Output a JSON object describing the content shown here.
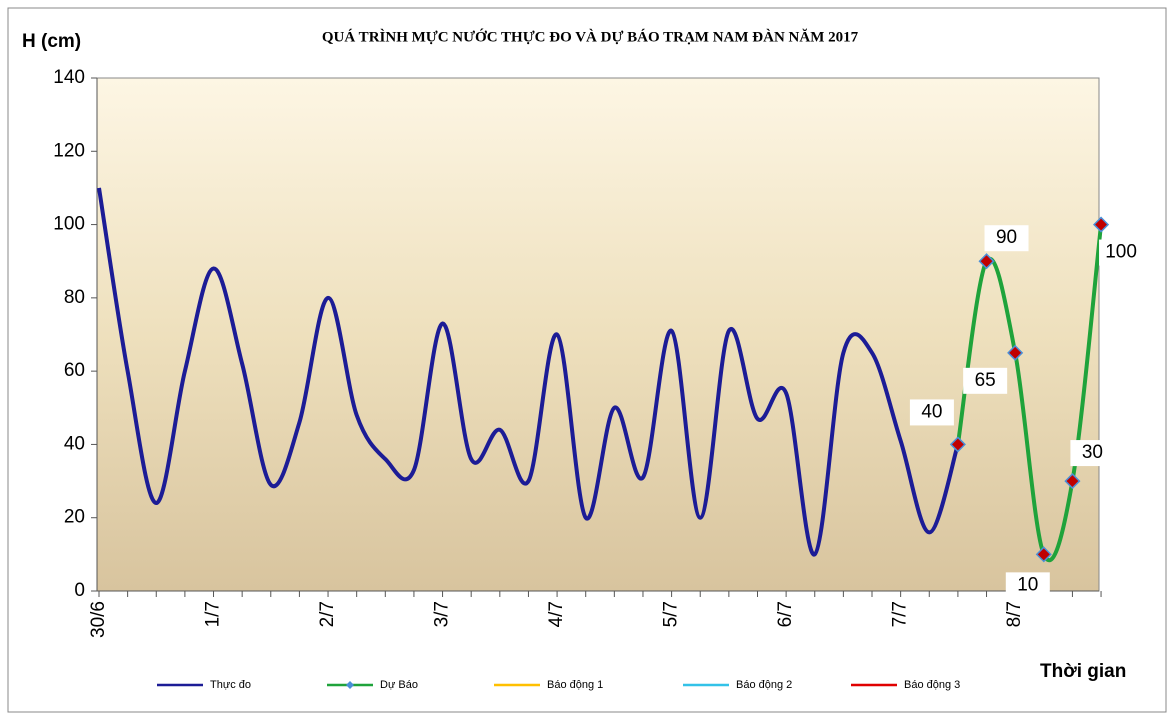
{
  "chart_data": {
    "type": "line",
    "title": "QUÁ TRÌNH MỰC NƯỚC THỰC ĐO VÀ DỰ BÁO TRẠM  NAM ĐÀN  NĂM 2017",
    "y_label": "H (cm)",
    "x_label": "Thời gian",
    "categories": [
      "30/6",
      null,
      null,
      null,
      "1/7",
      null,
      null,
      null,
      "2/7",
      null,
      null,
      null,
      "3/7",
      null,
      null,
      null,
      "4/7",
      null,
      null,
      null,
      "5/7",
      null,
      null,
      null,
      "6/7",
      null,
      null,
      null,
      "7/7",
      null,
      null,
      null,
      "8/7",
      null,
      null,
      null
    ],
    "ylim": [
      0,
      140
    ],
    "yticks": [
      0,
      20,
      40,
      60,
      80,
      100,
      120,
      140
    ],
    "grid": false,
    "legend": "bottom",
    "series": [
      {
        "name": "Thực đo",
        "color": "#1c1c96",
        "values": [
          110,
          60,
          24,
          60,
          88,
          62,
          29,
          46,
          80,
          48,
          36,
          33,
          73,
          36,
          44,
          30,
          70,
          20,
          50,
          31,
          71,
          20,
          71,
          47,
          54,
          10,
          65,
          65,
          41,
          16,
          40,
          null,
          null,
          null,
          null,
          null
        ]
      },
      {
        "name": "Dự Báo",
        "color": "#1fa33b",
        "marker_color": "#c00000",
        "data_labels": true,
        "values": [
          null,
          null,
          null,
          null,
          null,
          null,
          null,
          null,
          null,
          null,
          null,
          null,
          null,
          null,
          null,
          null,
          null,
          null,
          null,
          null,
          null,
          null,
          null,
          null,
          null,
          null,
          null,
          null,
          null,
          null,
          40,
          90,
          65,
          10,
          30,
          100
        ]
      },
      {
        "name": "Báo động 1",
        "color": "#ffc000",
        "values": [
          null,
          null,
          null,
          null,
          null,
          null,
          null,
          null,
          null,
          null,
          null,
          null,
          null,
          null,
          null,
          null,
          null,
          null,
          null,
          null,
          null,
          null,
          null,
          null,
          null,
          null,
          null,
          null,
          null,
          null,
          null,
          null,
          null,
          null,
          null,
          null
        ]
      },
      {
        "name": "Báo động 2",
        "color": "#33c2e8",
        "values": [
          null,
          null,
          null,
          null,
          null,
          null,
          null,
          null,
          null,
          null,
          null,
          null,
          null,
          null,
          null,
          null,
          null,
          null,
          null,
          null,
          null,
          null,
          null,
          null,
          null,
          null,
          null,
          null,
          null,
          null,
          null,
          null,
          null,
          null,
          null,
          null
        ]
      },
      {
        "name": "Báo động 3",
        "color": "#e00000",
        "values": [
          null,
          null,
          null,
          null,
          null,
          null,
          null,
          null,
          null,
          null,
          null,
          null,
          null,
          null,
          null,
          null,
          null,
          null,
          null,
          null,
          null,
          null,
          null,
          null,
          null,
          null,
          null,
          null,
          null,
          null,
          null,
          null,
          null,
          null,
          null,
          null
        ]
      }
    ]
  }
}
